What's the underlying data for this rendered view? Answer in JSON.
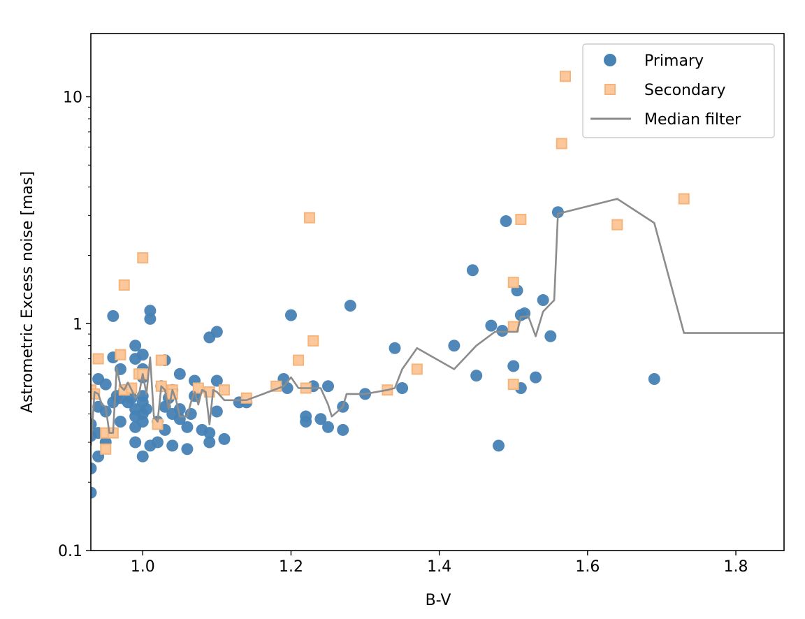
{
  "chart_data": {
    "type": "scatter",
    "title": "",
    "xlabel": "B-V",
    "ylabel": "Astrometric Excess noise [mas]",
    "xlim": [
      0.93,
      1.865
    ],
    "ylim": [
      0.1,
      19.0
    ],
    "yscale": "log",
    "x_ticks": [
      1.0,
      1.2,
      1.4,
      1.6,
      1.8
    ],
    "x_tick_labels": [
      "1.0",
      "1.2",
      "1.4",
      "1.6",
      "1.8"
    ],
    "y_ticks": [
      0.1,
      1,
      10
    ],
    "y_tick_labels": [
      "0.1",
      "1",
      "10"
    ],
    "legend": {
      "position": "top-right",
      "entries": [
        "Primary",
        "Secondary",
        "Median filter"
      ]
    },
    "colors": {
      "primary": "#4682b4",
      "secondary_fill": "#fcc89b",
      "secondary_edge": "#f5b47a",
      "median": "#8c8c8c"
    },
    "series": [
      {
        "name": "Primary",
        "marker": "circle",
        "points": [
          [
            0.93,
            0.18
          ],
          [
            0.93,
            0.23
          ],
          [
            0.93,
            0.32
          ],
          [
            0.93,
            0.36
          ],
          [
            0.94,
            0.26
          ],
          [
            0.94,
            0.33
          ],
          [
            0.94,
            0.43
          ],
          [
            0.94,
            0.57
          ],
          [
            0.95,
            0.3
          ],
          [
            0.95,
            0.41
          ],
          [
            0.95,
            0.54
          ],
          [
            0.96,
            0.45
          ],
          [
            0.96,
            0.71
          ],
          [
            0.96,
            1.08
          ],
          [
            0.965,
            0.48
          ],
          [
            0.97,
            0.37
          ],
          [
            0.97,
            0.47
          ],
          [
            0.97,
            0.63
          ],
          [
            0.975,
            0.51
          ],
          [
            0.98,
            0.45
          ],
          [
            0.985,
            0.47
          ],
          [
            0.99,
            0.8
          ],
          [
            0.99,
            0.7
          ],
          [
            0.99,
            0.42
          ],
          [
            0.99,
            0.39
          ],
          [
            0.99,
            0.35
          ],
          [
            0.99,
            0.3
          ],
          [
            1.0,
            0.26
          ],
          [
            1.0,
            0.37
          ],
          [
            1.0,
            0.4
          ],
          [
            1.0,
            0.45
          ],
          [
            1.0,
            0.48
          ],
          [
            1.0,
            0.63
          ],
          [
            1.0,
            0.73
          ],
          [
            1.0,
            0.58
          ],
          [
            1.005,
            0.42
          ],
          [
            1.01,
            0.29
          ],
          [
            1.01,
            1.05
          ],
          [
            1.01,
            1.14
          ],
          [
            1.02,
            0.3
          ],
          [
            1.02,
            0.37
          ],
          [
            1.025,
            0.53
          ],
          [
            1.03,
            0.69
          ],
          [
            1.03,
            0.43
          ],
          [
            1.03,
            0.34
          ],
          [
            1.035,
            0.47
          ],
          [
            1.04,
            0.29
          ],
          [
            1.04,
            0.4
          ],
          [
            1.04,
            0.51
          ],
          [
            1.05,
            0.38
          ],
          [
            1.05,
            0.42
          ],
          [
            1.05,
            0.6
          ],
          [
            1.06,
            0.28
          ],
          [
            1.06,
            0.35
          ],
          [
            1.065,
            0.4
          ],
          [
            1.07,
            0.48
          ],
          [
            1.07,
            0.56
          ],
          [
            1.08,
            0.34
          ],
          [
            1.09,
            0.3
          ],
          [
            1.09,
            0.33
          ],
          [
            1.09,
            0.87
          ],
          [
            1.1,
            0.92
          ],
          [
            1.1,
            0.56
          ],
          [
            1.1,
            0.41
          ],
          [
            1.11,
            0.31
          ],
          [
            1.13,
            0.45
          ],
          [
            1.14,
            0.45
          ],
          [
            1.19,
            0.57
          ],
          [
            1.195,
            0.52
          ],
          [
            1.2,
            1.09
          ],
          [
            1.22,
            0.39
          ],
          [
            1.22,
            0.37
          ],
          [
            1.23,
            0.53
          ],
          [
            1.24,
            0.38
          ],
          [
            1.25,
            0.53
          ],
          [
            1.25,
            0.35
          ],
          [
            1.27,
            0.34
          ],
          [
            1.27,
            0.43
          ],
          [
            1.28,
            1.2
          ],
          [
            1.3,
            0.49
          ],
          [
            1.34,
            0.78
          ],
          [
            1.35,
            0.52
          ],
          [
            1.42,
            0.8
          ],
          [
            1.445,
            1.72
          ],
          [
            1.45,
            0.59
          ],
          [
            1.47,
            0.98
          ],
          [
            1.48,
            0.29
          ],
          [
            1.485,
            0.93
          ],
          [
            1.49,
            2.83
          ],
          [
            1.5,
            0.65
          ],
          [
            1.505,
            1.4
          ],
          [
            1.51,
            0.52
          ],
          [
            1.51,
            1.09
          ],
          [
            1.515,
            1.11
          ],
          [
            1.53,
            0.58
          ],
          [
            1.54,
            1.27
          ],
          [
            1.55,
            0.88
          ],
          [
            1.56,
            3.1
          ],
          [
            1.69,
            0.57
          ]
        ]
      },
      {
        "name": "Secondary",
        "marker": "square",
        "points": [
          [
            0.93,
            0.51
          ],
          [
            0.935,
            0.49
          ],
          [
            0.94,
            0.7
          ],
          [
            0.95,
            0.28
          ],
          [
            0.95,
            0.33
          ],
          [
            0.96,
            0.33
          ],
          [
            0.97,
            0.73
          ],
          [
            0.975,
            0.51
          ],
          [
            0.975,
            1.48
          ],
          [
            0.985,
            0.52
          ],
          [
            0.995,
            0.6
          ],
          [
            1.0,
            0.6
          ],
          [
            1.0,
            1.95
          ],
          [
            1.02,
            0.36
          ],
          [
            1.025,
            0.53
          ],
          [
            1.025,
            0.69
          ],
          [
            1.04,
            0.51
          ],
          [
            1.04,
            0.49
          ],
          [
            1.075,
            0.52
          ],
          [
            1.09,
            0.5
          ],
          [
            1.11,
            0.51
          ],
          [
            1.14,
            0.47
          ],
          [
            1.18,
            0.53
          ],
          [
            1.21,
            0.69
          ],
          [
            1.22,
            0.52
          ],
          [
            1.225,
            2.93
          ],
          [
            1.23,
            0.84
          ],
          [
            1.33,
            0.51
          ],
          [
            1.37,
            0.63
          ],
          [
            1.5,
            1.52
          ],
          [
            1.5,
            0.97
          ],
          [
            1.5,
            0.54
          ],
          [
            1.51,
            2.88
          ],
          [
            1.565,
            6.22
          ],
          [
            1.57,
            12.3
          ],
          [
            1.64,
            2.73
          ],
          [
            1.73,
            3.55
          ]
        ]
      },
      {
        "name": "Median filter",
        "marker": "line",
        "points": [
          [
            0.93,
            0.29
          ],
          [
            0.935,
            0.5
          ],
          [
            0.94,
            0.49
          ],
          [
            0.945,
            0.44
          ],
          [
            0.95,
            0.43
          ],
          [
            0.955,
            0.33
          ],
          [
            0.96,
            0.33
          ],
          [
            0.965,
            0.64
          ],
          [
            0.97,
            0.53
          ],
          [
            0.975,
            0.51
          ],
          [
            0.98,
            0.55
          ],
          [
            0.985,
            0.51
          ],
          [
            0.99,
            0.47
          ],
          [
            0.995,
            0.49
          ],
          [
            1.0,
            0.6
          ],
          [
            1.005,
            0.49
          ],
          [
            1.01,
            0.71
          ],
          [
            1.015,
            0.39
          ],
          [
            1.02,
            0.37
          ],
          [
            1.025,
            0.53
          ],
          [
            1.03,
            0.51
          ],
          [
            1.035,
            0.42
          ],
          [
            1.04,
            0.51
          ],
          [
            1.045,
            0.46
          ],
          [
            1.05,
            0.39
          ],
          [
            1.06,
            0.39
          ],
          [
            1.065,
            0.45
          ],
          [
            1.07,
            0.5
          ],
          [
            1.075,
            0.44
          ],
          [
            1.08,
            0.51
          ],
          [
            1.085,
            0.5
          ],
          [
            1.09,
            0.36
          ],
          [
            1.095,
            0.51
          ],
          [
            1.1,
            0.5
          ],
          [
            1.11,
            0.46
          ],
          [
            1.14,
            0.46
          ],
          [
            1.19,
            0.53
          ],
          [
            1.2,
            0.58
          ],
          [
            1.21,
            0.52
          ],
          [
            1.24,
            0.52
          ],
          [
            1.25,
            0.44
          ],
          [
            1.255,
            0.39
          ],
          [
            1.27,
            0.43
          ],
          [
            1.275,
            0.49
          ],
          [
            1.3,
            0.49
          ],
          [
            1.33,
            0.51
          ],
          [
            1.34,
            0.52
          ],
          [
            1.35,
            0.63
          ],
          [
            1.37,
            0.78
          ],
          [
            1.42,
            0.63
          ],
          [
            1.45,
            0.8
          ],
          [
            1.475,
            0.92
          ],
          [
            1.49,
            0.92
          ],
          [
            1.505,
            0.92
          ],
          [
            1.51,
            1.07
          ],
          [
            1.52,
            1.08
          ],
          [
            1.53,
            0.88
          ],
          [
            1.54,
            1.13
          ],
          [
            1.555,
            1.27
          ],
          [
            1.56,
            3.05
          ],
          [
            1.64,
            3.55
          ],
          [
            1.69,
            2.78
          ],
          [
            1.73,
            0.91
          ],
          [
            1.865,
            0.91
          ]
        ]
      }
    ]
  }
}
